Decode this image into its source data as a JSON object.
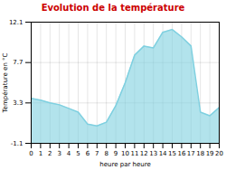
{
  "chart_data": {
    "type": "area",
    "title": "Evolution de la température",
    "title_color": "#cc0000",
    "xlabel": "heure par heure",
    "ylabel": "Température en °C",
    "x": [
      0,
      1,
      2,
      3,
      4,
      5,
      6,
      7,
      8,
      9,
      10,
      11,
      12,
      13,
      14,
      15,
      16,
      17,
      18,
      19,
      20
    ],
    "values": [
      3.8,
      3.6,
      3.3,
      3.1,
      2.7,
      2.3,
      1.0,
      0.8,
      1.2,
      3.0,
      5.5,
      8.5,
      9.5,
      9.3,
      11.0,
      11.3,
      10.5,
      9.5,
      2.3,
      1.9,
      2.8
    ],
    "color": "#7fd0e0",
    "xlim": [
      0,
      20
    ],
    "xticks": [
      0,
      1,
      2,
      3,
      4,
      5,
      6,
      7,
      8,
      9,
      10,
      11,
      12,
      13,
      14,
      15,
      16,
      17,
      18,
      19,
      20
    ],
    "ylim": [
      -1.1,
      12.1
    ],
    "yticks": [
      -1.1,
      3.3,
      7.7,
      12.1
    ],
    "grid": true
  }
}
